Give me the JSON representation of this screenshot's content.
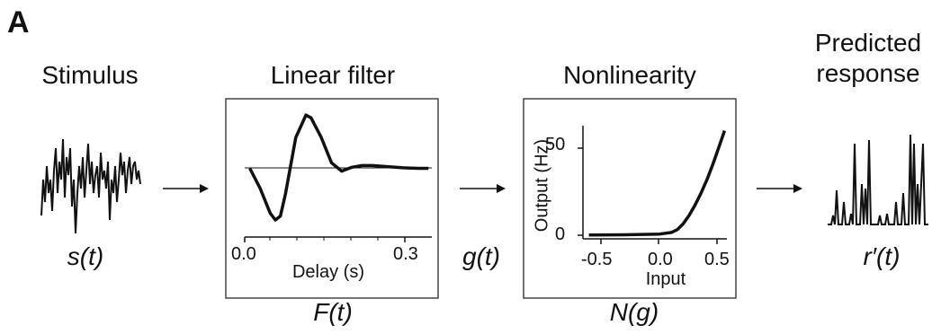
{
  "figure": {
    "panel_label": "A",
    "stages": {
      "stimulus": {
        "title": "Stimulus",
        "symbol": "s(t)"
      },
      "linear_filter": {
        "title": "Linear filter",
        "symbol": "F(t)",
        "intermediate_symbol": "g(t)"
      },
      "nonlinearity": {
        "title": "Nonlinearity",
        "symbol": "N(g)"
      },
      "predicted_response": {
        "title_line1": "Predicted",
        "title_line2": "response",
        "symbol": "r′(t)"
      }
    }
  },
  "chart_data": [
    {
      "type": "line",
      "title": "Linear filter",
      "xlabel": "Delay (s)",
      "ylabel": "",
      "xlim": [
        -0.01,
        0.36
      ],
      "ylim": [
        -1.0,
        1.0
      ],
      "xticks": [
        "0.0",
        "0.3"
      ],
      "baseline": 0,
      "x": [
        0.0,
        0.02,
        0.04,
        0.05,
        0.06,
        0.07,
        0.09,
        0.11,
        0.12,
        0.14,
        0.16,
        0.18,
        0.2,
        0.22,
        0.24,
        0.27,
        0.3,
        0.33,
        0.35
      ],
      "y": [
        0.0,
        -0.35,
        -0.8,
        -0.92,
        -0.85,
        -0.45,
        0.55,
        0.95,
        0.9,
        0.55,
        0.1,
        -0.05,
        0.02,
        0.05,
        0.05,
        0.03,
        0.01,
        0.0,
        0.0
      ]
    },
    {
      "type": "line",
      "title": "Nonlinearity",
      "xlabel": "Input",
      "ylabel": "Output (Hz)",
      "xlim": [
        -0.65,
        0.6
      ],
      "ylim": [
        -2,
        65
      ],
      "xticks": [
        "-0.5",
        "0.0",
        "0.5"
      ],
      "yticks": [
        "0",
        "50"
      ],
      "x": [
        -0.6,
        -0.3,
        0.0,
        0.1,
        0.15,
        0.2,
        0.25,
        0.3,
        0.35,
        0.4,
        0.45,
        0.5,
        0.55
      ],
      "y": [
        0.3,
        0.4,
        0.8,
        1.8,
        3.5,
        7,
        12,
        18,
        25,
        33,
        42,
        52,
        62
      ]
    }
  ]
}
